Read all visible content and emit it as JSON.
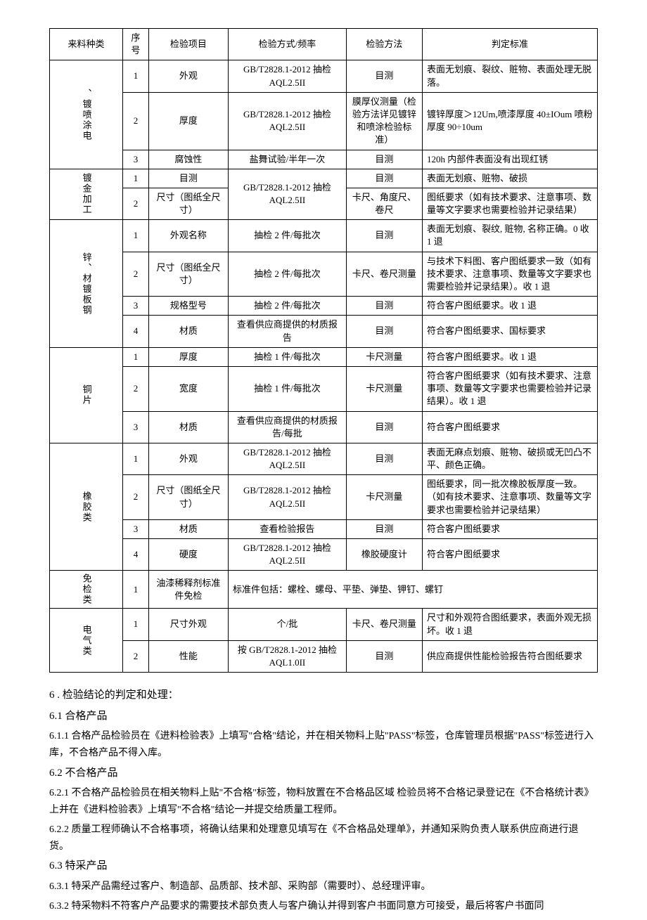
{
  "table": {
    "headers": [
      "来料种类",
      "序号",
      "检验项目",
      "检验方式/频率",
      "检验方法",
      "判定标准"
    ],
    "groups": [
      {
        "category": "、镀喷涂电",
        "rows": [
          {
            "seq": "1",
            "item": "外观",
            "freq": "GB/T2828.1-2012 抽检 AQL2.5II",
            "method": "目测",
            "criteria": "表面无划痕、裂纹、赃物、表面处理无脱落。"
          },
          {
            "seq": "2",
            "item": "厚度",
            "freq": "GB/T2828.1-2012 抽检 AQL2.5II",
            "method": "膜厚仪测量（检验方法详见镀锌和喷涂检验标准）",
            "criteria": "镀锌厚度＞12Um,喷漆厚度 40±IOum 喷粉厚度 90÷10um"
          },
          {
            "seq": "3",
            "item": "腐蚀性",
            "freq": "盐舞试验/半年一次",
            "method": "目测",
            "criteria": "120h 内部件表面没有出现红锈"
          }
        ]
      },
      {
        "category": "镀金加工",
        "merged_freq": "GB/T2828.1-2012 抽检 AQL2.5II",
        "rows": [
          {
            "seq": "1",
            "item": "目测",
            "method": "目测",
            "criteria": "表面无划痕、赃物、破损"
          },
          {
            "seq": "2",
            "item": "尺寸（图纸全尺寸）",
            "method": "卡尺、角度尺、卷尺",
            "criteria": "图纸要求（如有技术要求、注意事项、数量等文字要求也需要检验并记录结果）"
          }
        ]
      },
      {
        "category": "锌、材镀板钢",
        "rows": [
          {
            "seq": "1",
            "item": "外观名称",
            "freq": "抽检 2 件/每批次",
            "method": "目测",
            "criteria": "表面无划痕、裂纹, 赃物, 名称正确。0 收 1 退"
          },
          {
            "seq": "2",
            "item": "尺寸（图纸全尺寸）",
            "freq": "抽检 2 件/每批次",
            "method": "卡尺、卷尺测量",
            "criteria": "与技术下料图、客户图纸要求一致（如有技术要求、注意事项、数量等文字要求也 需要检验并记录结果）。收 1 退"
          },
          {
            "seq": "3",
            "item": "规格型号",
            "freq": "抽检 2 件/每批次",
            "method": "目测",
            "criteria": "符合客户图纸要求。收 1 退"
          },
          {
            "seq": "4",
            "item": "材质",
            "freq": "查看供应商提供的材质报告",
            "method": "目测",
            "criteria": "符合客户图纸要求、国标要求"
          }
        ]
      },
      {
        "category": "铜片",
        "rows": [
          {
            "seq": "1",
            "item": "厚度",
            "freq": "抽检 1 件/每批次",
            "method": "卡尺测量",
            "criteria": "符合客户图纸要求。收 1 退"
          },
          {
            "seq": "2",
            "item": "宽度",
            "freq": "抽检 1 件/每批次",
            "method": "卡尺测量",
            "criteria": "符合客户图纸要求（如有技术要求、注意事项、数量等文字要求也需要检验并记录结果）。收 1 退"
          },
          {
            "seq": "3",
            "item": "材质",
            "freq": "查看供应商提供的材质报告/每批",
            "method": "目测",
            "criteria": "符合客户图纸要求"
          }
        ]
      },
      {
        "category": "橡胶类",
        "rows": [
          {
            "seq": "1",
            "item": "外观",
            "freq": "GB/T2828.1-2012 抽检 AQL2.5II",
            "method": "目测",
            "criteria": "表面无麻点划痕、赃物、破损或无凹凸不平、颜色正确。"
          },
          {
            "seq": "2",
            "item": "尺寸（图纸全尺寸）",
            "freq": "GB/T2828.1-2012 抽检 AQL2.5II",
            "method": "卡尺测量",
            "criteria": "图纸要求，同一批次橡胶板厚度一致。 （如有技术要求、注意事项、数量等文字要求也需要检验并记录结果）"
          },
          {
            "seq": "3",
            "item": "材质",
            "freq": "查看检验报告",
            "method": "目测",
            "criteria": "符合客户图纸要求"
          },
          {
            "seq": "4",
            "item": "硬度",
            "freq": "GB/T2828.1-2012 抽检 AQL2.5II",
            "method": "橡胶硬度计",
            "criteria": "符合客户图纸要求"
          }
        ]
      },
      {
        "category": "免检类",
        "rows": [
          {
            "seq": "1",
            "item": "油漆稀释剂标准件免检",
            "merged_text": "标准件包括：螺栓、螺母、平垫、弹垫、钾钉、螺钉"
          }
        ]
      },
      {
        "category": "电气类",
        "rows": [
          {
            "seq": "1",
            "item": "尺寸外观",
            "freq": "个/批",
            "method": "卡尺、卷尺测量",
            "criteria": "尺寸和外观符合图纸要求，表面外观无损坏。收 1 退"
          },
          {
            "seq": "2",
            "item": "性能",
            "freq": "按 GB/T2828.1-2012 抽检 AQL1.0II",
            "method": "目测",
            "criteria": "供应商提供性能检验报告符合图纸要求"
          }
        ]
      }
    ]
  },
  "sections": {
    "s6": "6 . 检验结论的判定和处理：",
    "s6_1": "6.1 合格产品",
    "s6_1_1": "6.1.1 合格产品检验员在《进料检验表》上填写\"合格\"结论，并在相关物料上贴\"PASS\"标签，仓库管理员根据\"PASS\"标签进行入库，不合格产品不得入库。",
    "s6_2": "6.2 不合格产品",
    "s6_2_1": "6.2.1 不合格产品检验员在相关物料上贴\"不合格\"标签，物料放置在不合格品区域 检验员将不合格记录登记在《不合格统计表》上并在《进料检验表》上填写\"不合格\"结论一并提交给质量工程师。",
    "s6_2_2": "6.2.2 质量工程师确认不合格事项，将确认结果和处理意见填写在《不合格品处理单》，并通知采购负责人联系供应商进行退货。",
    "s6_3": "6.3 特采产品",
    "s6_3_1": "6.3.1 特采产品需经过客户、制造部、品质部、技术部、采购部（需要时）、总经理评审。",
    "s6_3_2": "6.3.2 特采物料不符客户产品要求的需要技术部负责人与客户确认并得到客户书面同意方可接受，最后将客户书面同"
  }
}
